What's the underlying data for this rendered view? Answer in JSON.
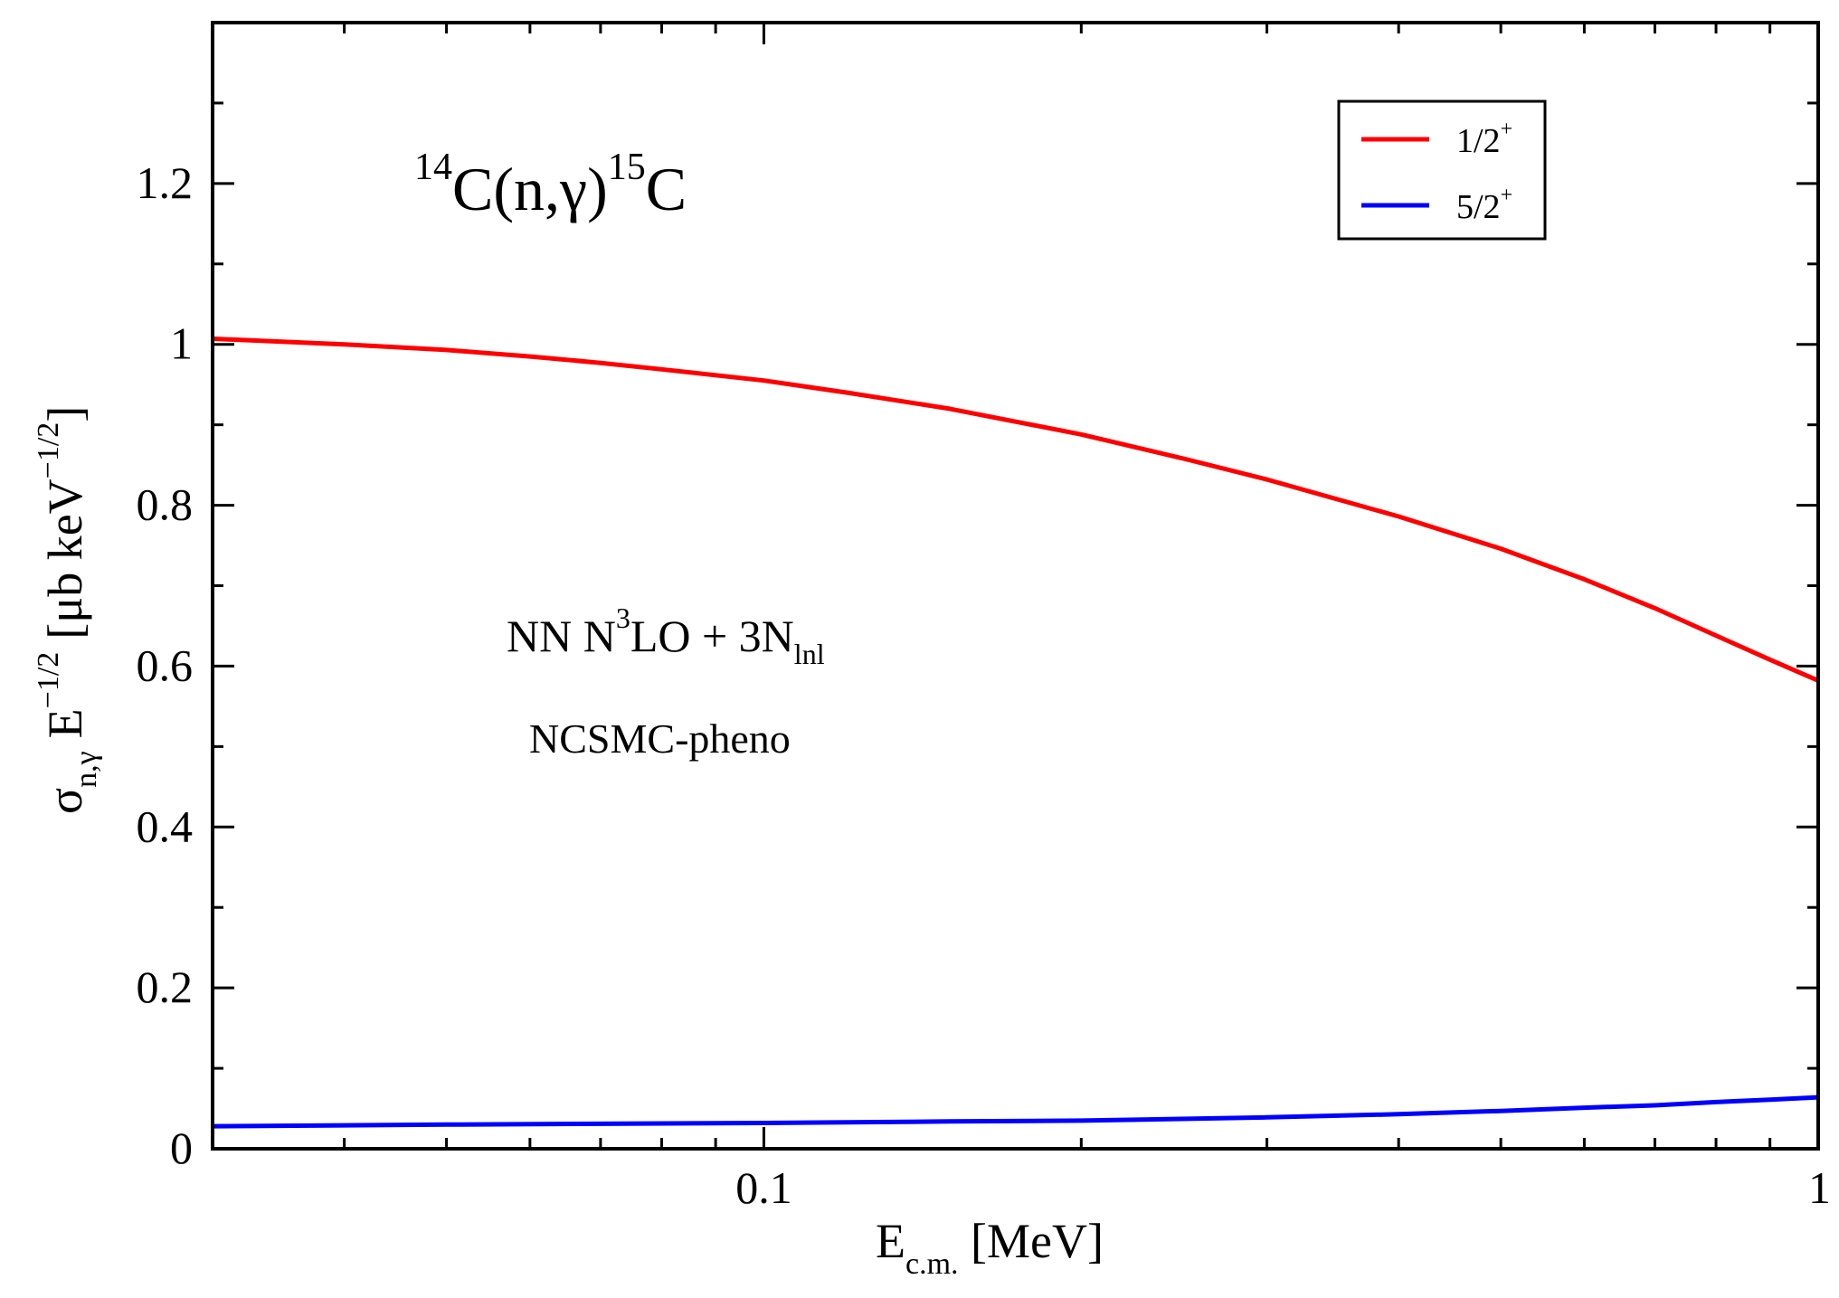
{
  "chart_data": {
    "type": "line",
    "title": "",
    "reaction_label": {
      "pre1": "14",
      "mid1": "C(n,",
      "gamma": "γ",
      "mid2": ")",
      "pre2": "15",
      "end": "C"
    },
    "interaction_label": {
      "a": "NN N",
      "sup": "3",
      "b": "LO + 3N",
      "sub": "lnl"
    },
    "method_label": "NCSMC-pheno",
    "x_axis": {
      "label_main": "E",
      "label_sub": "c.m.",
      "label_unit": " [MeV]",
      "scale": "log",
      "range": [
        0.03,
        1.0
      ],
      "major_ticks": [
        0.1,
        1
      ],
      "tick_labels": [
        "0.1",
        "1"
      ],
      "minor_ticks": [
        0.04,
        0.05,
        0.06,
        0.07,
        0.08,
        0.09,
        0.2,
        0.3,
        0.4,
        0.5,
        0.6,
        0.7,
        0.8,
        0.9
      ]
    },
    "y_axis": {
      "label_sigma": "σ",
      "label_sigma_sub": "n,γ",
      "label_E": "E",
      "label_E_sup": "−1/2",
      "label_unit_open": "[μb keV",
      "label_unit_sup": "−1/2",
      "label_unit_close": "]",
      "range": [
        0,
        1.4
      ],
      "major_ticks": [
        0,
        0.2,
        0.4,
        0.6,
        0.8,
        1,
        1.2
      ],
      "tick_labels": [
        "0",
        "0.2",
        "0.4",
        "0.6",
        "0.8",
        "1",
        "1.2"
      ],
      "minor_ticks": [
        0.1,
        0.3,
        0.5,
        0.7,
        0.9,
        1.1,
        1.3
      ]
    },
    "legend": {
      "position": "top-right",
      "entries": [
        {
          "label": "1/2",
          "sup": "+",
          "color": "#ff0000"
        },
        {
          "label": "5/2",
          "sup": "+",
          "color": "#0000ff"
        }
      ]
    },
    "series": [
      {
        "name": "1/2+",
        "color": "#ff0000",
        "x": [
          0.03,
          0.04,
          0.05,
          0.06,
          0.07,
          0.08,
          0.1,
          0.12,
          0.15,
          0.2,
          0.25,
          0.3,
          0.4,
          0.5,
          0.6,
          0.7,
          0.8,
          0.9,
          1.0
        ],
        "y": [
          1.007,
          1.0,
          0.993,
          0.985,
          0.977,
          0.969,
          0.955,
          0.94,
          0.92,
          0.888,
          0.858,
          0.832,
          0.786,
          0.746,
          0.708,
          0.672,
          0.638,
          0.608,
          0.582
        ]
      },
      {
        "name": "5/2+",
        "color": "#0000ff",
        "x": [
          0.03,
          0.05,
          0.07,
          0.1,
          0.15,
          0.2,
          0.3,
          0.4,
          0.5,
          0.6,
          0.7,
          0.8,
          0.9,
          1.0
        ],
        "y": [
          0.028,
          0.03,
          0.031,
          0.032,
          0.034,
          0.035,
          0.039,
          0.043,
          0.047,
          0.051,
          0.054,
          0.058,
          0.061,
          0.064
        ]
      }
    ]
  }
}
